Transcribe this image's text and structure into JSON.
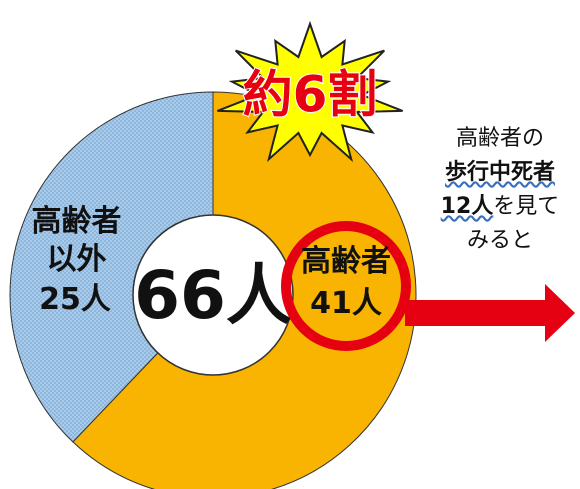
{
  "chart_data": {
    "type": "donut",
    "categories": [
      "高齢者",
      "高齢者以外"
    ],
    "values": [
      41,
      25
    ],
    "value_labels": [
      "41人",
      "25人"
    ],
    "colors": [
      "#f8b400",
      "#9dc3e6"
    ],
    "center_label": "66人",
    "burst_label": "約6割",
    "annotation": [
      "高齢者の",
      "歩行中死者",
      "12人",
      "を見て",
      "みると"
    ]
  }
}
